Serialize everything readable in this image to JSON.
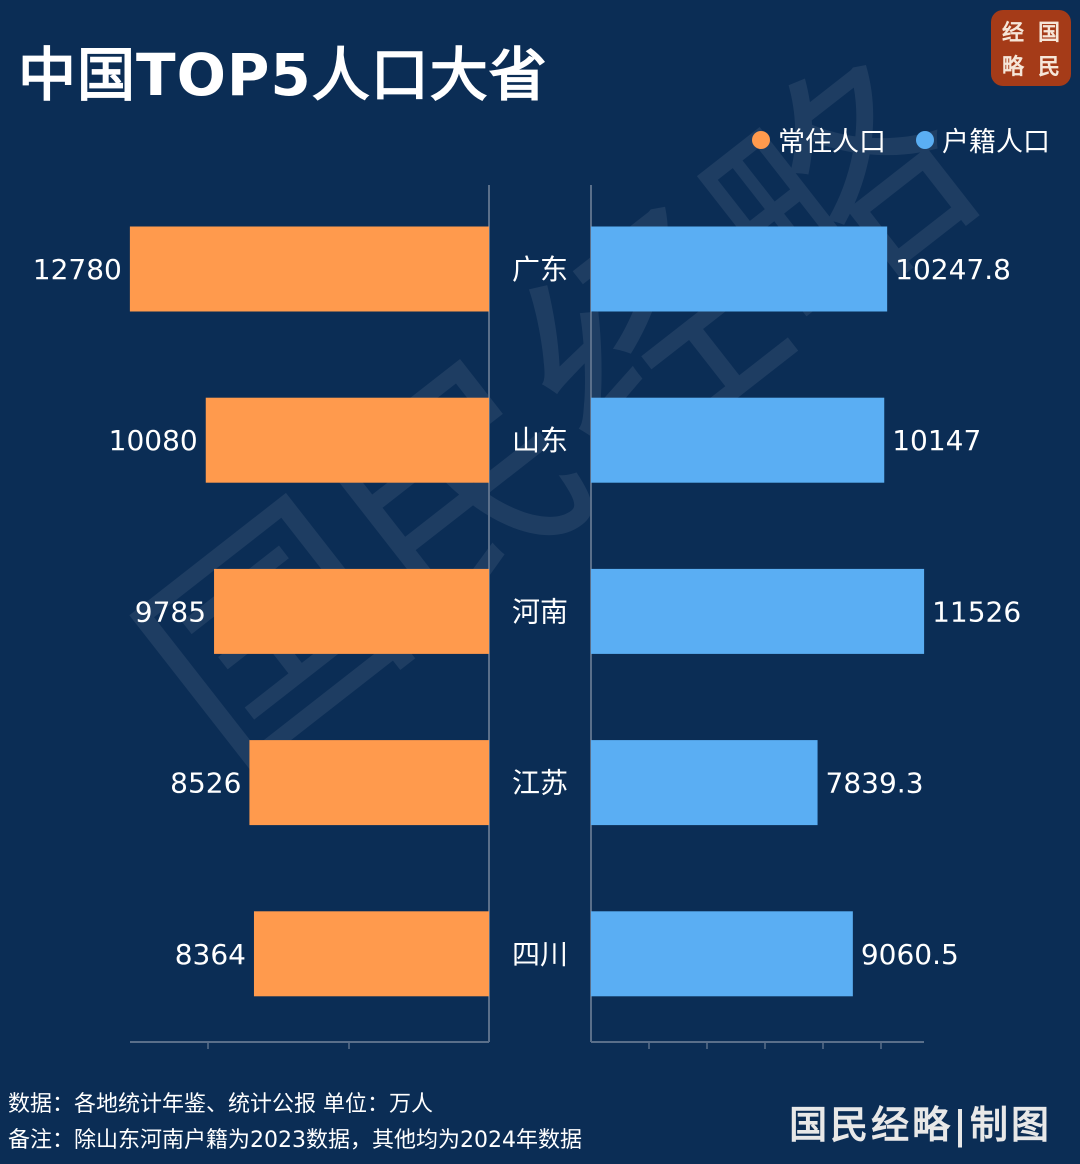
{
  "title": "中国TOP5人口大省",
  "logo": [
    "经",
    "国",
    "略",
    "民"
  ],
  "watermark": "国民经略",
  "legend": [
    {
      "label": "常住人口",
      "color": "#ff9a4d"
    },
    {
      "label": "户籍人口",
      "color": "#5aaef3"
    }
  ],
  "chart_data": {
    "type": "bar",
    "title": "中国TOP5人口大省",
    "categories": [
      "广东",
      "山东",
      "河南",
      "江苏",
      "四川"
    ],
    "series": [
      {
        "name": "常住人口",
        "color": "#ff9a4d",
        "values": [
          12780,
          10080,
          9785,
          8526,
          8364
        ],
        "direction": "left"
      },
      {
        "name": "户籍人口",
        "color": "#5aaef3",
        "values": [
          10247.8,
          10147,
          11526,
          7839.3,
          9060.5
        ],
        "direction": "right"
      }
    ],
    "value_labels": {
      "常住人口": [
        "12780",
        "10080",
        "9785",
        "8526",
        "8364"
      ],
      "户籍人口": [
        "10247.8",
        "10147",
        "11526",
        "7839.3",
        "9060.5"
      ]
    },
    "unit": "万人",
    "grid": false,
    "legend_position": "top-right"
  },
  "footer": {
    "source": "数据：各地统计年鉴、统计公报 单位：万人",
    "note": "备注：除山东河南户籍为2023数据，其他均为2024年数据",
    "credit": "国民经略|制图"
  }
}
